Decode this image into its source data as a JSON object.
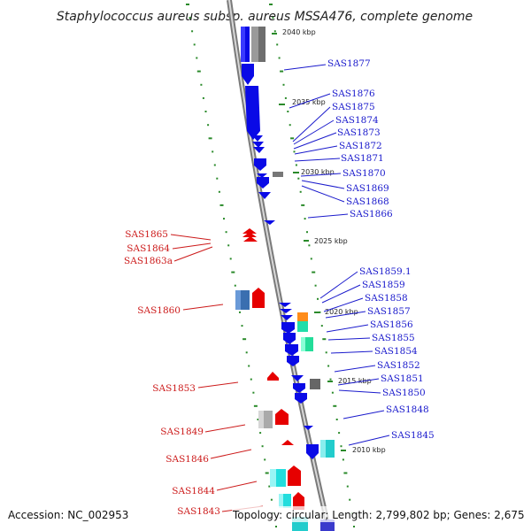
{
  "title": "Staphylococcus aureus subsp. aureus MSSA476, complete genome",
  "accession": "Accession: NC_002953",
  "topology": "Topology: circular; Length: 2,799,802 bp; Genes: 2,675",
  "colors": {
    "forward_gene": "#0a0ae6",
    "reverse_gene": "#e60000",
    "forward_label": "#1a1acc",
    "reverse_label": "#cc1a1a",
    "backbone": "#8c8c8c",
    "gc_dots": "#2a8a2a"
  },
  "kbp_labels": [
    {
      "text": "2040 kbp"
    },
    {
      "text": "2035 kbp"
    },
    {
      "text": "2030 kbp"
    },
    {
      "text": "2025 kbp"
    },
    {
      "text": "2020 kbp"
    },
    {
      "text": "2015 kbp"
    },
    {
      "text": "2010 kbp"
    }
  ],
  "forward_genes": [
    "SAS1877",
    "SAS1876",
    "SAS1875",
    "SAS1874",
    "SAS1873",
    "SAS1872",
    "SAS1871",
    "SAS1870",
    "SAS1869",
    "SAS1868",
    "SAS1866",
    "SAS1859.1",
    "SAS1859",
    "SAS1858",
    "SAS1857",
    "SAS1856",
    "SAS1855",
    "SAS1854",
    "SAS1852",
    "SAS1851",
    "SAS1850",
    "SAS1848",
    "SAS1845"
  ],
  "reverse_genes": [
    "SAS1865",
    "SAS1864",
    "SAS1863a",
    "SAS1860",
    "SAS1853",
    "SAS1849",
    "SAS1846",
    "SAS1844",
    "SAS1843"
  ]
}
